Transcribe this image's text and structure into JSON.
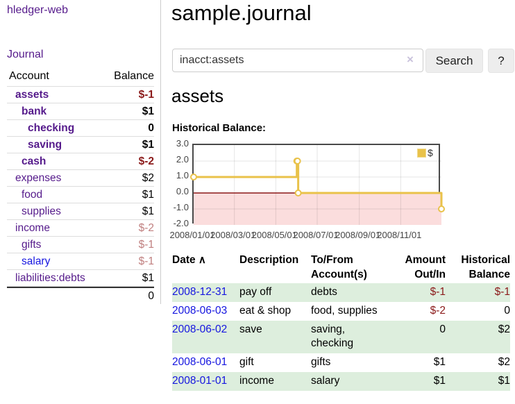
{
  "brand": "hledger-web",
  "nav": {
    "journal": "Journal"
  },
  "colors": {
    "link_purple": "#551A8B",
    "link_blue": "#1515e0",
    "negative_strong": "#8b1a1a",
    "negative_muted": "#c07f7f",
    "row_shade_green": "#ddeedd",
    "series_gold": "#e9c24a",
    "negative_region_pink": "#fbdddd",
    "zero_line_red": "#8b1616"
  },
  "sidebar": {
    "columns": {
      "account": "Account",
      "balance": "Balance"
    },
    "accounts": [
      {
        "name": "assets",
        "depth": 1,
        "bold": true,
        "balance": "$-1",
        "negative": "strong"
      },
      {
        "name": "bank",
        "depth": 2,
        "bold": true,
        "balance": "$1"
      },
      {
        "name": "checking",
        "depth": 3,
        "bold": true,
        "balance": "0"
      },
      {
        "name": "saving",
        "depth": 3,
        "bold": true,
        "balance": "$1"
      },
      {
        "name": "cash",
        "depth": 2,
        "bold": true,
        "balance": "$-2",
        "negative": "strong"
      },
      {
        "name": "expenses",
        "depth": 1,
        "bold": false,
        "balance": "$2"
      },
      {
        "name": "food",
        "depth": 2,
        "bold": false,
        "balance": "$1"
      },
      {
        "name": "supplies",
        "depth": 2,
        "bold": false,
        "balance": "$1"
      },
      {
        "name": "income",
        "depth": 1,
        "bold": false,
        "balance": "$-2",
        "negative": "muted"
      },
      {
        "name": "gifts",
        "depth": 2,
        "bold": false,
        "balance": "$-1",
        "negative": "muted"
      },
      {
        "name": "salary",
        "depth": 2,
        "bold": false,
        "balance": "$-1",
        "negative": "muted",
        "link_color": "blue"
      },
      {
        "name": "liabilities:debts",
        "depth": 1,
        "bold": false,
        "balance": "$1"
      }
    ],
    "total": "0"
  },
  "header": {
    "title": "sample.journal"
  },
  "search": {
    "value": "inacct:assets",
    "clear_glyph": "×",
    "button": "Search",
    "help_button": "?"
  },
  "account_page": {
    "heading": "assets",
    "chart_label": "Historical Balance:"
  },
  "chart_data": {
    "type": "line",
    "title": "Historical Balance:",
    "step": true,
    "legend": "$",
    "legend_position": "top-right",
    "grid": true,
    "x_range_days": [
      "2008-01-01",
      "2008-12-31"
    ],
    "ylim": [
      -2,
      3
    ],
    "y_ticks": [
      "3.0",
      "2.0",
      "1.0",
      "0.0",
      "-1.0",
      "-2.0"
    ],
    "x_ticks": [
      "2008/01/01",
      "2008/03/01",
      "2008/05/01",
      "2008/07/01",
      "2008/09/01",
      "2008/11/01"
    ],
    "series": [
      {
        "name": "$",
        "points": [
          [
            "2008-01-01",
            1
          ],
          [
            "2008-06-01",
            2
          ],
          [
            "2008-06-02",
            2
          ],
          [
            "2008-06-03",
            0
          ],
          [
            "2008-12-31",
            -1
          ]
        ]
      }
    ]
  },
  "register": {
    "sort_icon": "∧",
    "columns": {
      "date": "Date",
      "description": "Description",
      "accounts_l1": "To/From",
      "accounts_l2": "Account(s)",
      "amount_l1": "Amount",
      "amount_l2": "Out/In",
      "balance_l1": "Historical",
      "balance_l2": "Balance"
    },
    "rows": [
      {
        "date": "2008-12-31",
        "description": "pay off",
        "accounts": "debts",
        "amount": "$-1",
        "amount_neg": true,
        "balance": "$-1",
        "balance_neg": true,
        "shade": true
      },
      {
        "date": "2008-06-03",
        "description": "eat & shop",
        "accounts": "food, supplies",
        "amount": "$-2",
        "amount_neg": true,
        "balance": "0",
        "balance_neg": false,
        "shade": false
      },
      {
        "date": "2008-06-02",
        "description": "save",
        "accounts": "saving, checking",
        "amount": "0",
        "amount_neg": false,
        "balance": "$2",
        "balance_neg": false,
        "shade": true
      },
      {
        "date": "2008-06-01",
        "description": "gift",
        "accounts": "gifts",
        "amount": "$1",
        "amount_neg": false,
        "balance": "$2",
        "balance_neg": false,
        "shade": false
      },
      {
        "date": "2008-01-01",
        "description": "income",
        "accounts": "salary",
        "amount": "$1",
        "amount_neg": false,
        "balance": "$1",
        "balance_neg": false,
        "shade": true
      }
    ]
  }
}
